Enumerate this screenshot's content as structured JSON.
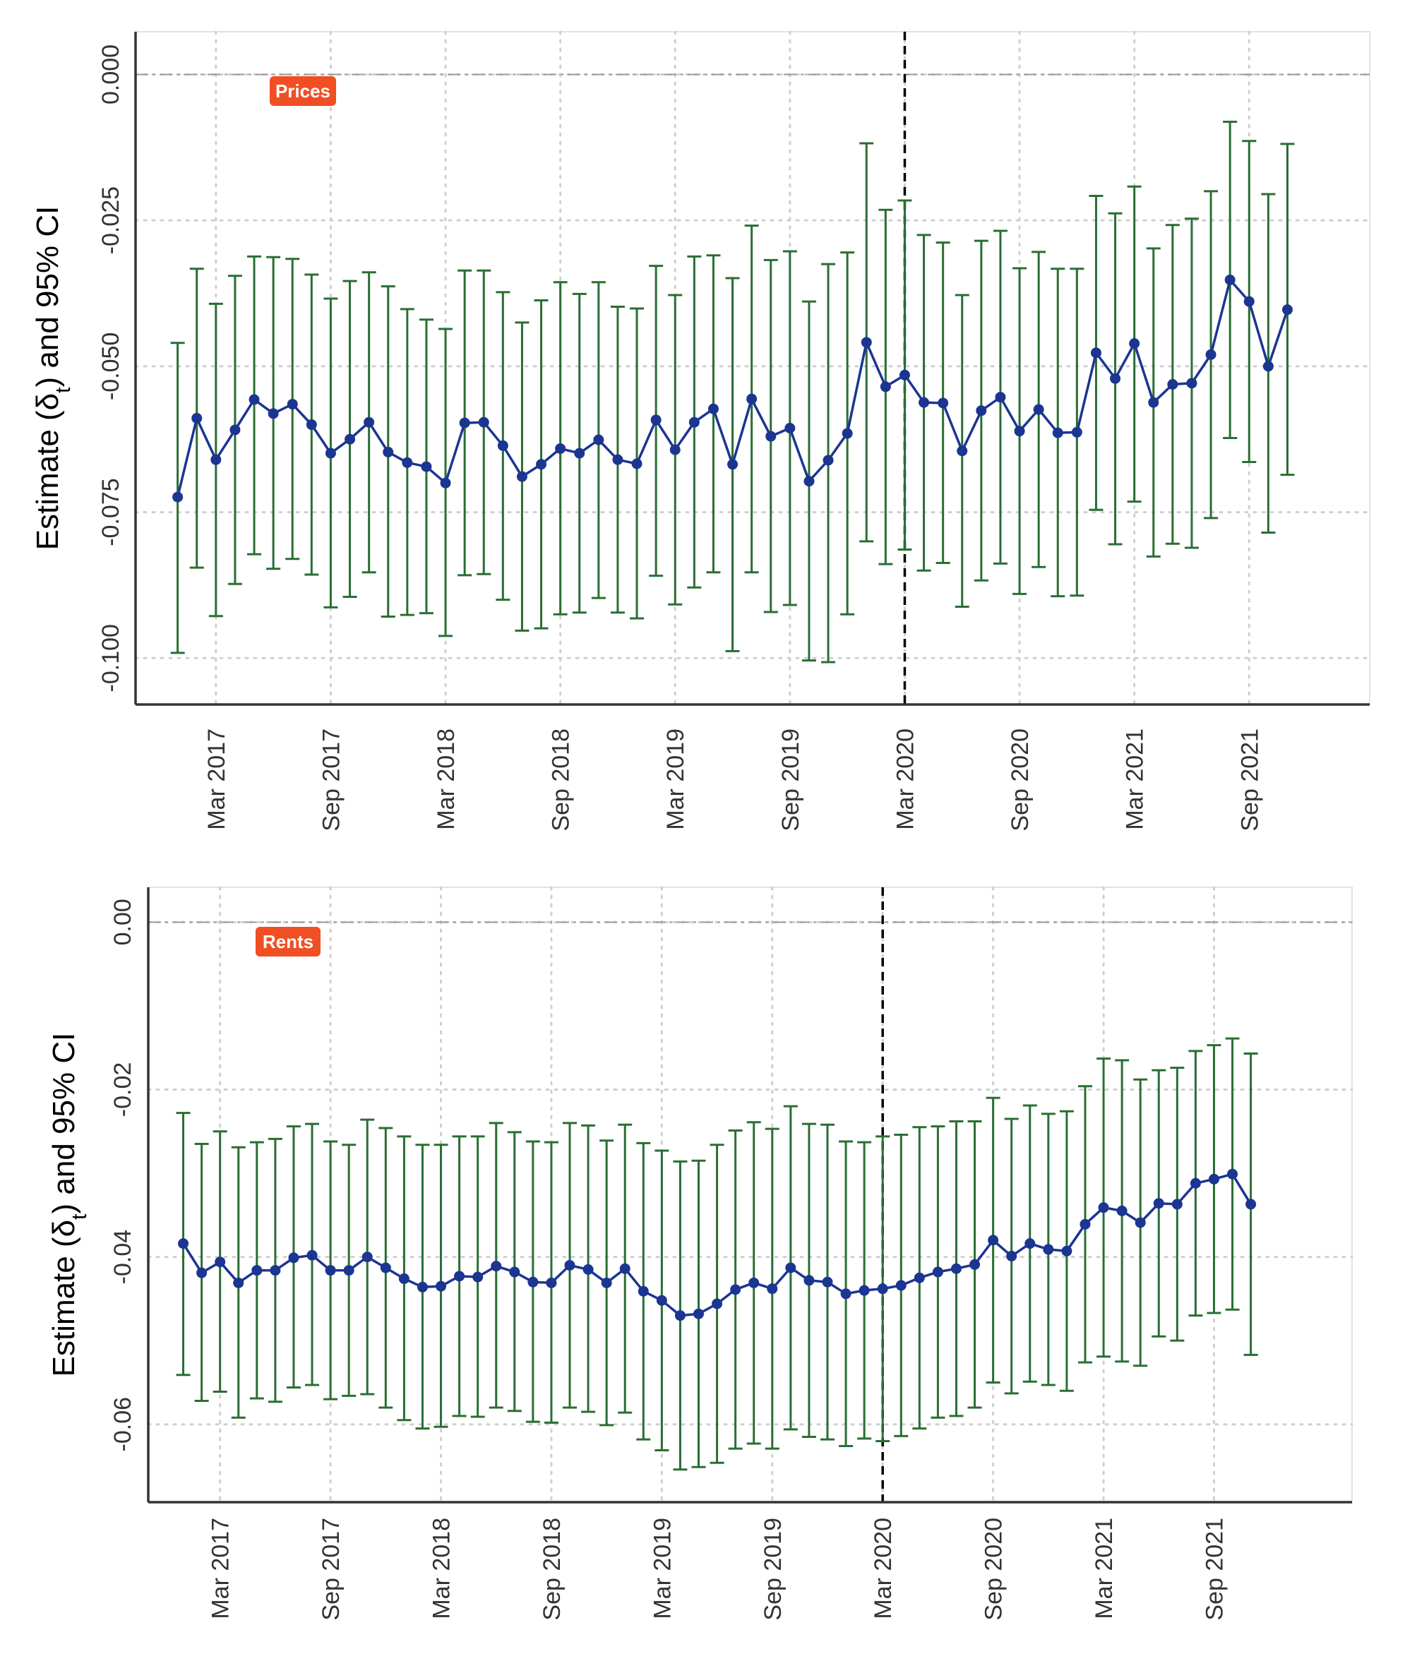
{
  "chart_data": [
    {
      "type": "line",
      "tag": "Prices",
      "ylabel_prefix": "Estimate",
      "ylabel_symbol": "δ",
      "ylabel_subscript": "t",
      "ylabel_suffix": "and 95% CI",
      "ylim": [
        -0.1065,
        0.0055
      ],
      "yticks": [
        "0.000",
        "-0.025",
        "-0.050",
        "-0.075",
        "-0.100"
      ],
      "ytick_values": [
        0.0,
        -0.025,
        -0.05,
        -0.075,
        -0.1
      ],
      "xticks": [
        "Mar 2017",
        "Sep 2017",
        "Mar 2018",
        "Sep 2018",
        "Mar 2019",
        "Sep 2019",
        "Mar 2020",
        "Sep 2020",
        "Mar 2021",
        "Sep 2021"
      ],
      "xtick_values": [
        2,
        8,
        14,
        20,
        26,
        32,
        38,
        44,
        50,
        56
      ],
      "xlim": [
        -2.2,
        62.3
      ],
      "reference_line_y": 0.0,
      "vertical_line_x": 38,
      "grid": true,
      "colors": {
        "estimate": "#1b3591",
        "ci": "#2a6e32",
        "tag": "#f04e23",
        "grid": "#cfcfcf",
        "vline": "#000000",
        "hline": "#9a9a9a"
      },
      "x": [
        0,
        1,
        2,
        3,
        4,
        5,
        6,
        7,
        8,
        9,
        10,
        11,
        12,
        13,
        14,
        15,
        16,
        17,
        18,
        19,
        20,
        21,
        22,
        23,
        24,
        25,
        26,
        27,
        28,
        29,
        30,
        31,
        32,
        33,
        34,
        35,
        36,
        37,
        38,
        39,
        40,
        41,
        42,
        43,
        44,
        45,
        46,
        47,
        48,
        49,
        50,
        51,
        52,
        53,
        54,
        55,
        56,
        57,
        58
      ],
      "series": [
        {
          "values": [
            -0.0724,
            -0.0589,
            -0.066,
            -0.0609,
            -0.0557,
            -0.0581,
            -0.0565,
            -0.06,
            -0.0649,
            -0.0625,
            -0.0596,
            -0.0647,
            -0.0665,
            -0.0672,
            -0.07,
            -0.0597,
            -0.0596,
            -0.0636,
            -0.0689,
            -0.0668,
            -0.0641,
            -0.0649,
            -0.0626,
            -0.066,
            -0.0667,
            -0.0592,
            -0.0643,
            -0.0596,
            -0.0573,
            -0.0668,
            -0.0556,
            -0.062,
            -0.0606,
            -0.0697,
            -0.0661,
            -0.0615,
            -0.0459,
            -0.0535,
            -0.0515,
            -0.0562,
            -0.0563,
            -0.0645,
            -0.0576,
            -0.0553,
            -0.0611,
            -0.0574,
            -0.0614,
            -0.0613,
            -0.0477,
            -0.0521,
            -0.0461,
            -0.0562,
            -0.0531,
            -0.0529,
            -0.048,
            -0.0352,
            -0.0389,
            -0.05,
            -0.0403
          ],
          "lower": [
            -0.0991,
            -0.0845,
            -0.0928,
            -0.0873,
            -0.0822,
            -0.0847,
            -0.083,
            -0.0857,
            -0.0913,
            -0.0895,
            -0.0853,
            -0.0929,
            -0.0926,
            -0.0923,
            -0.0962,
            -0.0858,
            -0.0856,
            -0.09,
            -0.0953,
            -0.0949,
            -0.0925,
            -0.0922,
            -0.0897,
            -0.0922,
            -0.0932,
            -0.0859,
            -0.0908,
            -0.0879,
            -0.0853,
            -0.0988,
            -0.0853,
            -0.0921,
            -0.0909,
            -0.1004,
            -0.1007,
            -0.0925,
            -0.08,
            -0.0839,
            -0.0814,
            -0.085,
            -0.0837,
            -0.0912,
            -0.0867,
            -0.0838,
            -0.089,
            -0.0844,
            -0.0894,
            -0.0893,
            -0.0746,
            -0.0805,
            -0.0732,
            -0.0826,
            -0.0804,
            -0.0811,
            -0.076,
            -0.0623,
            -0.0664,
            -0.0785,
            -0.0686
          ],
          "upper": [
            -0.046,
            -0.0333,
            -0.0393,
            -0.0345,
            -0.0312,
            -0.0313,
            -0.0316,
            -0.0343,
            -0.0384,
            -0.0354,
            -0.0339,
            -0.0363,
            -0.0402,
            -0.042,
            -0.0436,
            -0.0336,
            -0.0336,
            -0.0373,
            -0.0425,
            -0.0387,
            -0.0356,
            -0.0376,
            -0.0356,
            -0.0398,
            -0.0401,
            -0.0328,
            -0.0378,
            -0.0312,
            -0.031,
            -0.0349,
            -0.0259,
            -0.0318,
            -0.0303,
            -0.0389,
            -0.0325,
            -0.0305,
            -0.0118,
            -0.0232,
            -0.0216,
            -0.0275,
            -0.0288,
            -0.0378,
            -0.0285,
            -0.0268,
            -0.0332,
            -0.0304,
            -0.0333,
            -0.0333,
            -0.0208,
            -0.0238,
            -0.0192,
            -0.0298,
            -0.0258,
            -0.0247,
            -0.02,
            -0.0081,
            -0.0114,
            -0.0205,
            -0.0119
          ]
        }
      ]
    },
    {
      "type": "line",
      "tag": "Rents",
      "ylabel_prefix": "Estimate",
      "ylabel_symbol": "δ",
      "ylabel_subscript": "t",
      "ylabel_suffix": "and 95% CI",
      "ylim": [
        -0.0693,
        0.0034
      ],
      "yticks": [
        "0.00",
        "-0.02",
        "-0.04",
        "-0.06"
      ],
      "ytick_values": [
        0.0,
        -0.02,
        -0.04,
        -0.06
      ],
      "xticks": [
        "Mar 2017",
        "Sep 2017",
        "Mar 2018",
        "Sep 2018",
        "Mar 2019",
        "Sep 2019",
        "Mar 2020",
        "Sep 2020",
        "Mar 2021",
        "Sep 2021"
      ],
      "xtick_values": [
        2,
        8,
        14,
        20,
        26,
        32,
        38,
        44,
        50,
        56
      ],
      "xlim": [
        -1.9,
        63.5
      ],
      "reference_line_y": 0.0,
      "vertical_line_x": 38,
      "grid": true,
      "colors": {
        "estimate": "#1b3591",
        "ci": "#2a6e32",
        "tag": "#f04e23",
        "grid": "#cfcfcf",
        "vline": "#000000",
        "hline": "#9a9a9a"
      },
      "x": [
        0,
        1,
        2,
        3,
        4,
        5,
        6,
        7,
        8,
        9,
        10,
        11,
        12,
        13,
        14,
        15,
        16,
        17,
        18,
        19,
        20,
        21,
        22,
        23,
        24,
        25,
        26,
        27,
        28,
        29,
        30,
        31,
        32,
        33,
        34,
        35,
        36,
        37,
        38,
        39,
        40,
        41,
        42,
        43,
        44,
        45,
        46,
        47,
        48,
        49,
        50,
        51,
        52,
        53,
        54,
        55,
        56,
        57,
        58
      ],
      "series": [
        {
          "values": [
            -0.0384,
            -0.0419,
            -0.0406,
            -0.0431,
            -0.0416,
            -0.0416,
            -0.0401,
            -0.0398,
            -0.0416,
            -0.0416,
            -0.04,
            -0.0413,
            -0.0426,
            -0.0436,
            -0.0435,
            -0.0423,
            -0.0424,
            -0.0411,
            -0.0418,
            -0.043,
            -0.0431,
            -0.041,
            -0.0415,
            -0.0431,
            -0.0414,
            -0.0441,
            -0.0452,
            -0.047,
            -0.0468,
            -0.0456,
            -0.0439,
            -0.0431,
            -0.0438,
            -0.0413,
            -0.0428,
            -0.043,
            -0.0444,
            -0.044,
            -0.0438,
            -0.0434,
            -0.0425,
            -0.0418,
            -0.0414,
            -0.0409,
            -0.038,
            -0.0399,
            -0.0384,
            -0.0391,
            -0.0393,
            -0.0361,
            -0.0341,
            -0.0345,
            -0.0359,
            -0.0336,
            -0.0337,
            -0.0312,
            -0.0307,
            -0.0301,
            -0.0337
          ],
          "lower": [
            -0.0541,
            -0.0572,
            -0.0561,
            -0.0592,
            -0.0569,
            -0.0573,
            -0.0556,
            -0.0553,
            -0.057,
            -0.0566,
            -0.0564,
            -0.058,
            -0.0595,
            -0.0605,
            -0.0603,
            -0.059,
            -0.0591,
            -0.058,
            -0.0584,
            -0.0597,
            -0.0598,
            -0.058,
            -0.0585,
            -0.0601,
            -0.0586,
            -0.0618,
            -0.0631,
            -0.0654,
            -0.0651,
            -0.0646,
            -0.0629,
            -0.0623,
            -0.0629,
            -0.0606,
            -0.0615,
            -0.0618,
            -0.0626,
            -0.0617,
            -0.062,
            -0.0614,
            -0.0605,
            -0.0592,
            -0.059,
            -0.058,
            -0.055,
            -0.0563,
            -0.0549,
            -0.0553,
            -0.056,
            -0.0526,
            -0.0519,
            -0.0525,
            -0.053,
            -0.0495,
            -0.05,
            -0.047,
            -0.0467,
            -0.0463,
            -0.0517
          ],
          "upper": [
            -0.0228,
            -0.0265,
            -0.025,
            -0.0269,
            -0.0263,
            -0.0259,
            -0.0244,
            -0.0241,
            -0.0262,
            -0.0266,
            -0.0236,
            -0.0246,
            -0.0256,
            -0.0266,
            -0.0266,
            -0.0256,
            -0.0256,
            -0.024,
            -0.0251,
            -0.0262,
            -0.0263,
            -0.024,
            -0.0243,
            -0.0261,
            -0.0242,
            -0.0264,
            -0.0273,
            -0.0286,
            -0.0285,
            -0.0266,
            -0.0249,
            -0.0239,
            -0.0247,
            -0.022,
            -0.0241,
            -0.0242,
            -0.0262,
            -0.0263,
            -0.0256,
            -0.0254,
            -0.0245,
            -0.0244,
            -0.0238,
            -0.0238,
            -0.021,
            -0.0235,
            -0.0219,
            -0.0229,
            -0.0226,
            -0.0196,
            -0.0163,
            -0.0165,
            -0.0188,
            -0.0177,
            -0.0174,
            -0.0154,
            -0.0147,
            -0.0139,
            -0.0157
          ]
        }
      ]
    }
  ]
}
